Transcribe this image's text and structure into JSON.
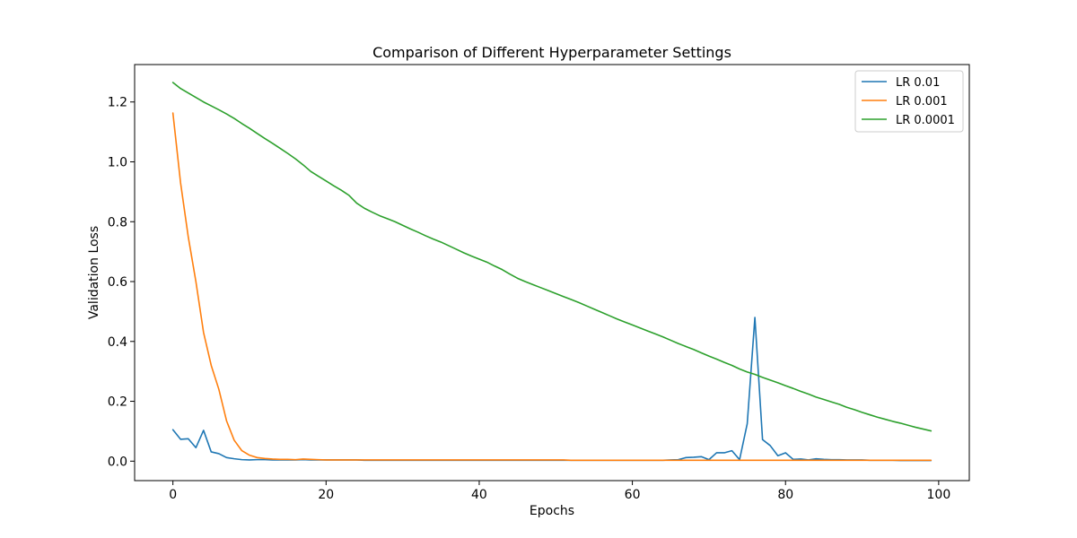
{
  "chart_data": {
    "type": "line",
    "title": "Comparison of Different Hyperparameter Settings",
    "xlabel": "Epochs",
    "ylabel": "Validation Loss",
    "xlim": [
      -5,
      104
    ],
    "ylim": [
      -0.065,
      1.325
    ],
    "xticks": [
      0,
      20,
      40,
      60,
      80,
      100
    ],
    "yticks": [
      0.0,
      0.2,
      0.4,
      0.6,
      0.8,
      1.0,
      1.2
    ],
    "grid": false,
    "legend_position": "top-right",
    "x": [
      0,
      1,
      2,
      3,
      4,
      5,
      6,
      7,
      8,
      9,
      10,
      11,
      12,
      13,
      14,
      15,
      16,
      17,
      18,
      19,
      20,
      21,
      22,
      23,
      24,
      25,
      26,
      27,
      28,
      29,
      30,
      31,
      32,
      33,
      34,
      35,
      36,
      37,
      38,
      39,
      40,
      41,
      42,
      43,
      44,
      45,
      46,
      47,
      48,
      49,
      50,
      51,
      52,
      53,
      54,
      55,
      56,
      57,
      58,
      59,
      60,
      61,
      62,
      63,
      64,
      65,
      66,
      67,
      68,
      69,
      70,
      71,
      72,
      73,
      74,
      75,
      76,
      77,
      78,
      79,
      80,
      81,
      82,
      83,
      84,
      85,
      86,
      87,
      88,
      89,
      90,
      91,
      92,
      93,
      94,
      95,
      96,
      97,
      98,
      99
    ],
    "series": [
      {
        "name": "LR 0.01",
        "color": "#1f77b4",
        "values": [
          0.105,
          0.073,
          0.075,
          0.045,
          0.103,
          0.031,
          0.025,
          0.012,
          0.008,
          0.005,
          0.004,
          0.005,
          0.005,
          0.004,
          0.004,
          0.004,
          0.004,
          0.005,
          0.004,
          0.004,
          0.004,
          0.004,
          0.004,
          0.004,
          0.004,
          0.003,
          0.003,
          0.003,
          0.003,
          0.003,
          0.003,
          0.003,
          0.003,
          0.003,
          0.003,
          0.003,
          0.003,
          0.003,
          0.003,
          0.003,
          0.003,
          0.003,
          0.003,
          0.003,
          0.003,
          0.003,
          0.003,
          0.003,
          0.003,
          0.003,
          0.003,
          0.003,
          0.003,
          0.003,
          0.003,
          0.003,
          0.003,
          0.003,
          0.003,
          0.003,
          0.003,
          0.003,
          0.003,
          0.003,
          0.003,
          0.004,
          0.005,
          0.012,
          0.013,
          0.015,
          0.005,
          0.028,
          0.028,
          0.035,
          0.005,
          0.125,
          0.48,
          0.072,
          0.052,
          0.018,
          0.028,
          0.006,
          0.007,
          0.004,
          0.008,
          0.006,
          0.005,
          0.005,
          0.004,
          0.004,
          0.004,
          0.003,
          0.003,
          0.003,
          0.003,
          0.002,
          0.002,
          0.002,
          0.002,
          0.002
        ]
      },
      {
        "name": "LR 0.001",
        "color": "#ff7f0e",
        "values": [
          1.163,
          0.93,
          0.75,
          0.6,
          0.43,
          0.32,
          0.24,
          0.135,
          0.07,
          0.035,
          0.02,
          0.012,
          0.009,
          0.007,
          0.006,
          0.006,
          0.005,
          0.007,
          0.006,
          0.005,
          0.004,
          0.004,
          0.004,
          0.004,
          0.004,
          0.004,
          0.004,
          0.004,
          0.004,
          0.004,
          0.004,
          0.004,
          0.004,
          0.004,
          0.004,
          0.004,
          0.004,
          0.004,
          0.004,
          0.004,
          0.004,
          0.004,
          0.004,
          0.004,
          0.004,
          0.004,
          0.004,
          0.004,
          0.004,
          0.004,
          0.004,
          0.004,
          0.003,
          0.003,
          0.003,
          0.003,
          0.003,
          0.003,
          0.003,
          0.003,
          0.003,
          0.003,
          0.003,
          0.003,
          0.003,
          0.003,
          0.003,
          0.003,
          0.003,
          0.003,
          0.003,
          0.003,
          0.003,
          0.003,
          0.003,
          0.003,
          0.003,
          0.003,
          0.003,
          0.003,
          0.003,
          0.003,
          0.003,
          0.003,
          0.003,
          0.003,
          0.003,
          0.003,
          0.003,
          0.003,
          0.003,
          0.003,
          0.003,
          0.003,
          0.003,
          0.003,
          0.003,
          0.003,
          0.003,
          0.003
        ]
      },
      {
        "name": "LR 0.0001",
        "color": "#2ca02c",
        "values": [
          1.265,
          1.245,
          1.23,
          1.215,
          1.2,
          1.187,
          1.174,
          1.16,
          1.145,
          1.128,
          1.112,
          1.095,
          1.078,
          1.062,
          1.045,
          1.028,
          1.01,
          0.99,
          0.968,
          0.952,
          0.936,
          0.92,
          0.905,
          0.888,
          0.862,
          0.845,
          0.832,
          0.82,
          0.81,
          0.8,
          0.788,
          0.776,
          0.765,
          0.753,
          0.742,
          0.732,
          0.72,
          0.708,
          0.696,
          0.685,
          0.675,
          0.665,
          0.652,
          0.64,
          0.625,
          0.611,
          0.6,
          0.59,
          0.58,
          0.57,
          0.56,
          0.55,
          0.54,
          0.53,
          0.519,
          0.508,
          0.497,
          0.486,
          0.475,
          0.465,
          0.455,
          0.445,
          0.435,
          0.425,
          0.415,
          0.404,
          0.393,
          0.383,
          0.373,
          0.362,
          0.351,
          0.341,
          0.33,
          0.32,
          0.308,
          0.298,
          0.29,
          0.28,
          0.271,
          0.262,
          0.252,
          0.243,
          0.233,
          0.224,
          0.214,
          0.206,
          0.198,
          0.19,
          0.18,
          0.172,
          0.163,
          0.155,
          0.147,
          0.14,
          0.133,
          0.127,
          0.12,
          0.113,
          0.107,
          0.101
        ]
      }
    ]
  }
}
